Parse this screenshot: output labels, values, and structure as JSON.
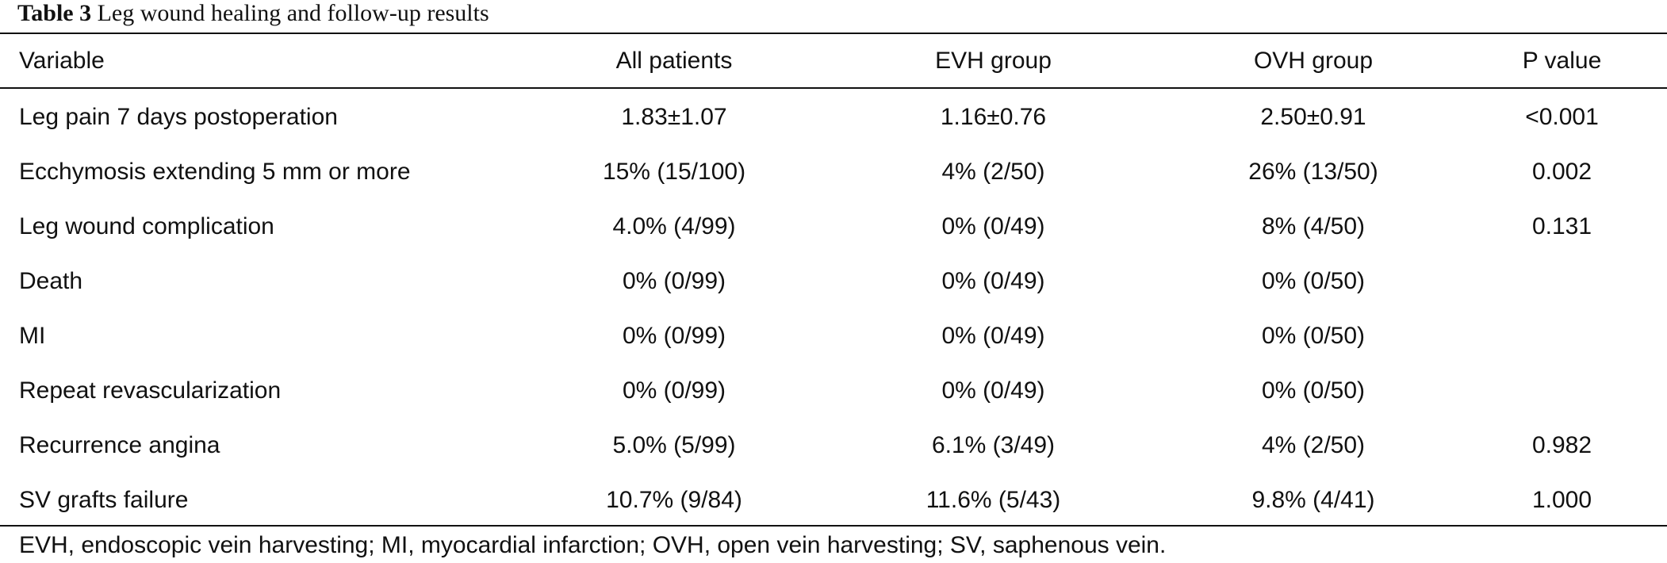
{
  "caption": {
    "number": "Table 3",
    "title": "Leg wound healing and follow-up results"
  },
  "headers": {
    "variable": "Variable",
    "all": "All patients",
    "evh": "EVH group",
    "ovh": "OVH group",
    "p": "P value"
  },
  "rows": [
    {
      "variable": "Leg pain 7 days postoperation",
      "all": "1.83±1.07",
      "evh": "1.16±0.76",
      "ovh": "2.50±0.91",
      "p": "<0.001"
    },
    {
      "variable": "Ecchymosis extending 5 mm or more",
      "all": "15% (15/100)",
      "evh": "4% (2/50)",
      "ovh": "26% (13/50)",
      "p": "0.002"
    },
    {
      "variable": "Leg wound complication",
      "all": "4.0% (4/99)",
      "evh": "0% (0/49)",
      "ovh": "8% (4/50)",
      "p": "0.131"
    },
    {
      "variable": "Death",
      "all": "0% (0/99)",
      "evh": "0% (0/49)",
      "ovh": "0% (0/50)",
      "p": ""
    },
    {
      "variable": "MI",
      "all": "0% (0/99)",
      "evh": "0% (0/49)",
      "ovh": "0% (0/50)",
      "p": ""
    },
    {
      "variable": "Repeat revascularization",
      "all": "0% (0/99)",
      "evh": "0% (0/49)",
      "ovh": "0% (0/50)",
      "p": ""
    },
    {
      "variable": "Recurrence angina",
      "all": "5.0% (5/99)",
      "evh": "6.1% (3/49)",
      "ovh": "4% (2/50)",
      "p": "0.982"
    },
    {
      "variable": "SV grafts failure",
      "all": "10.7% (9/84)",
      "evh": "11.6% (5/43)",
      "ovh": "9.8% (4/41)",
      "p": "1.000"
    }
  ],
  "footnote": "EVH, endoscopic vein harvesting; MI, myocardial infarction; OVH, open vein harvesting; SV, saphenous vein."
}
